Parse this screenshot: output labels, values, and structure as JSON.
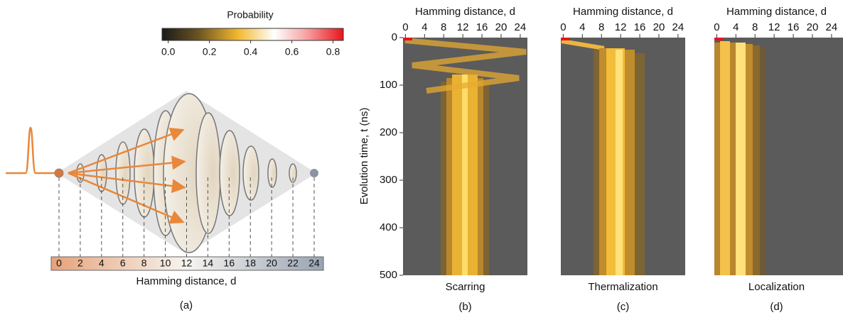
{
  "colorbar": {
    "title": "Probability",
    "lim": [
      -0.03,
      0.85
    ],
    "ticks": [
      {
        "value": 0,
        "label": "0.0"
      },
      0.2,
      0.4,
      0.6,
      0.8
    ]
  },
  "panel_a": {
    "ticks": [
      0,
      2,
      4,
      6,
      8,
      10,
      12,
      14,
      16,
      18,
      20,
      22,
      24
    ],
    "axis_label": "Hamming distance, d",
    "caption": "(a)"
  },
  "heatmaps": {
    "x_label": "Hamming distance, d",
    "xlim": [
      -0.5,
      25.5
    ],
    "xticks": [
      0,
      4,
      8,
      12,
      16,
      20,
      24
    ],
    "y_label": "Evolution time, t (ns)",
    "ylim": [
      0,
      500
    ],
    "yticks": [
      0,
      100,
      200,
      300,
      400,
      500
    ],
    "panels": [
      {
        "name": "Scarring",
        "caption": "(b)"
      },
      {
        "name": "Thermalization",
        "caption": "(c)"
      },
      {
        "name": "Localization",
        "caption": "(d)"
      }
    ]
  }
}
